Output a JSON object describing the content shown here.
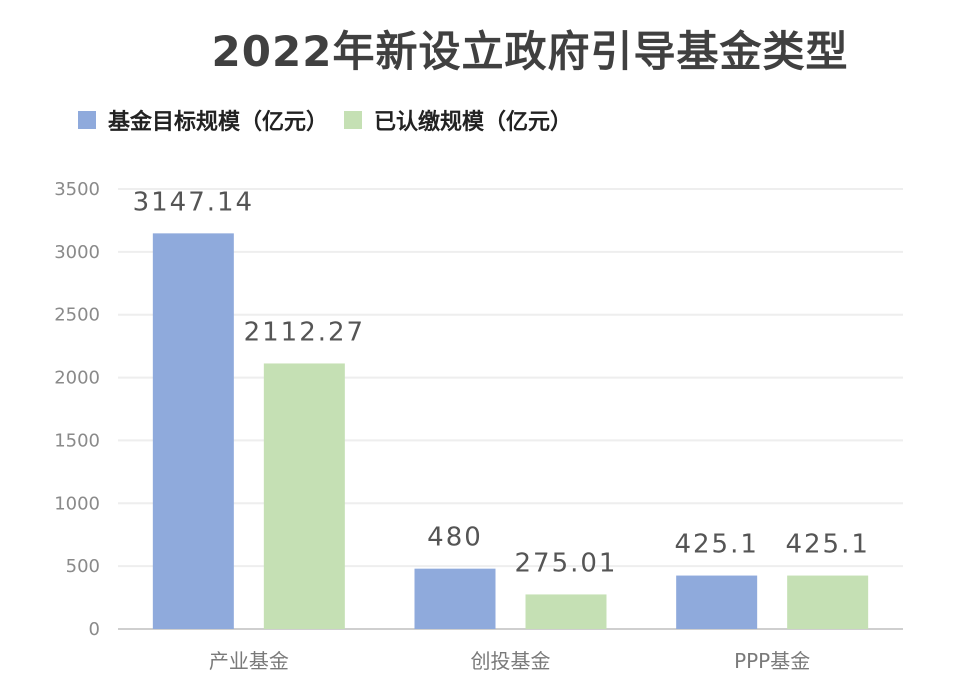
{
  "chart_data": {
    "type": "bar",
    "title": "2022年新设立政府引导基金类型",
    "categories": [
      "产业基金",
      "创投基金",
      "PPP基金"
    ],
    "series": [
      {
        "name": "基金目标规模（亿元）",
        "color": "#8faadc",
        "values": [
          3147.14,
          480,
          425.1
        ],
        "labels": [
          "3147.14",
          "480",
          "425.1"
        ]
      },
      {
        "name": "已认缴规模（亿元）",
        "color": "#c5e0b4",
        "values": [
          2112.27,
          275.01,
          425.1
        ],
        "labels": [
          "2112.27",
          "275.01",
          "425.1"
        ]
      }
    ],
    "ylim": [
      0,
      3500
    ],
    "yticks": [
      0,
      500,
      1000,
      1500,
      2000,
      2500,
      3000,
      3500
    ],
    "grid": true,
    "legend_position": "top-left"
  }
}
